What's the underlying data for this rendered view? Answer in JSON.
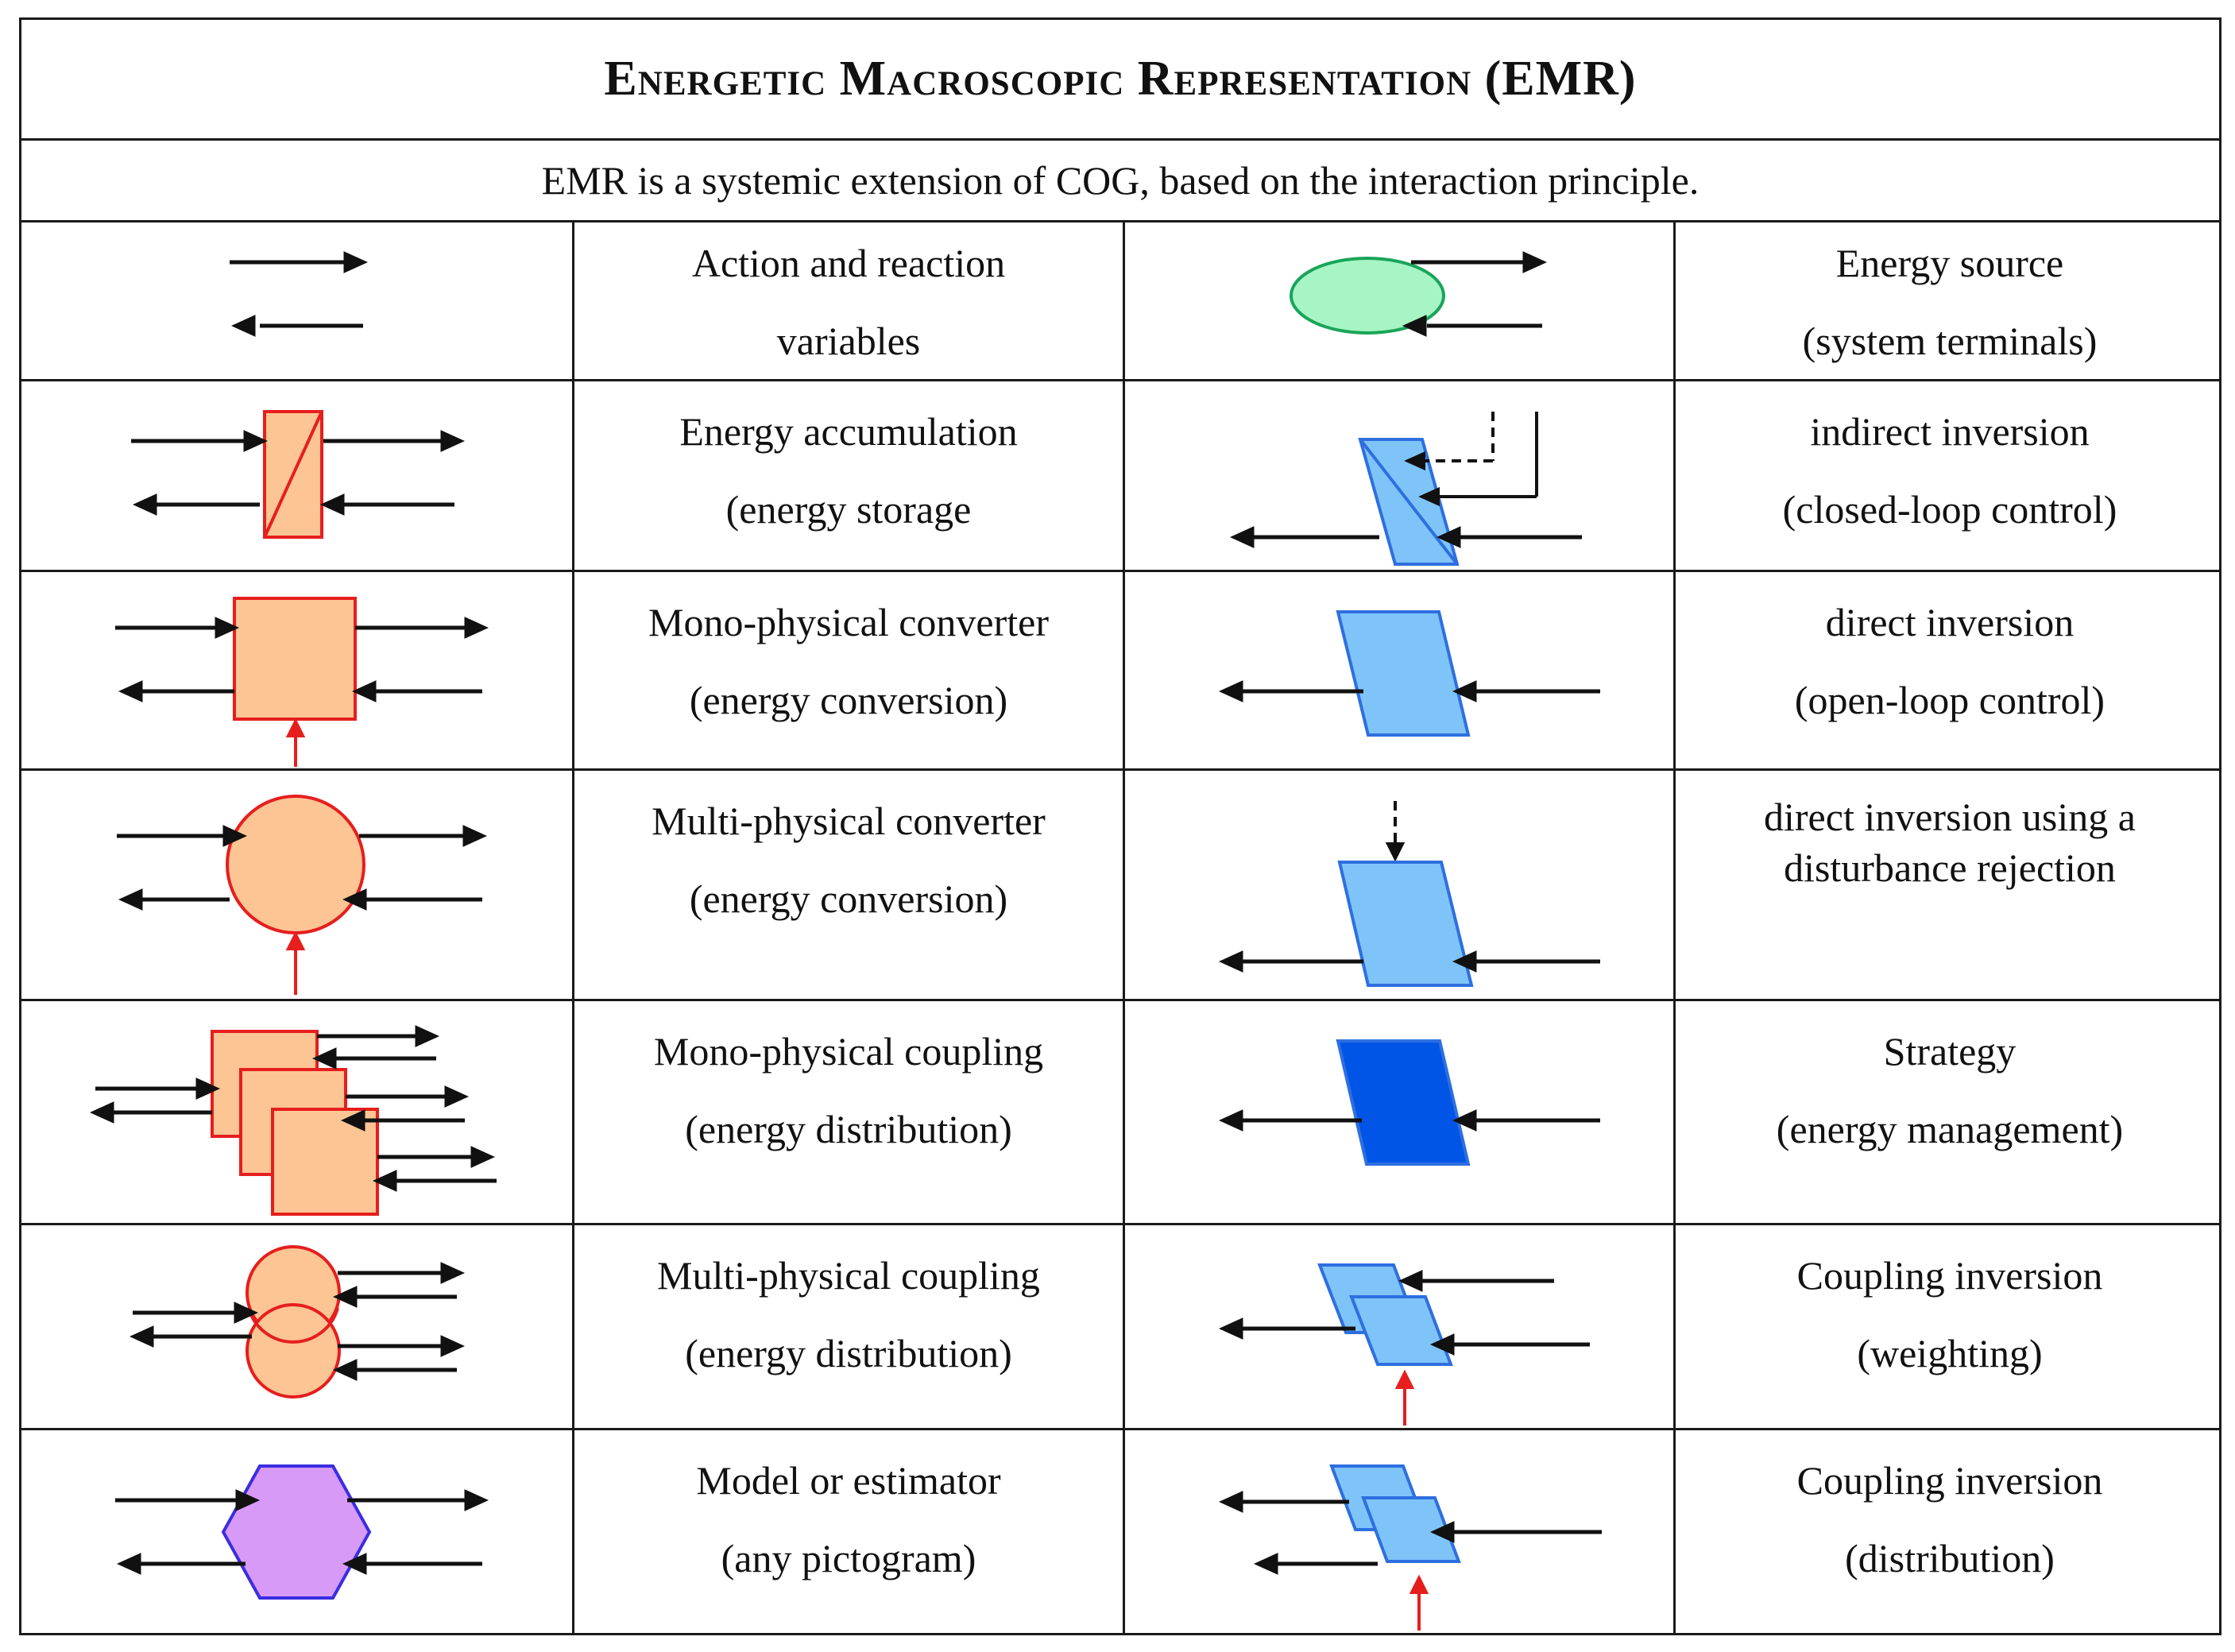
{
  "title": "Energetic Macroscopic Representation (EMR)",
  "subtitle": "EMR is a systemic extension of COG, based on the interaction principle.",
  "colors": {
    "orange_fill": "#fcc593",
    "orange_stroke": "#e61e1e",
    "blue_fill": "#7fc4f8",
    "blue_stroke": "#2e6fe0",
    "blue_dark": "#0055e6",
    "green_fill": "#a7f5c4",
    "green_stroke": "#19a55a",
    "purple_fill": "#d79af7",
    "purple_stroke": "#3a2ee0",
    "red_arrow": "#e61e1e"
  },
  "rows": [
    {
      "left": {
        "symbol": "action-reaction-arrows-icon",
        "line1": "Action and reaction",
        "line2": "variables"
      },
      "right": {
        "symbol": "energy-source-ellipse-icon",
        "line1": "Energy source",
        "line2": "(system terminals)"
      }
    },
    {
      "left": {
        "symbol": "energy-accumulation-rectangle-icon",
        "line1": "Energy accumulation",
        "line2": "(energy storage"
      },
      "right": {
        "symbol": "indirect-inversion-parallelogram-icon",
        "line1": "indirect inversion",
        "line2": "(closed-loop control)"
      }
    },
    {
      "left": {
        "symbol": "mono-physical-converter-square-icon",
        "line1": "Mono-physical converter",
        "line2": "(energy conversion)"
      },
      "right": {
        "symbol": "direct-inversion-parallelogram-icon",
        "line1": "direct inversion",
        "line2": "(open-loop control)"
      }
    },
    {
      "left": {
        "symbol": "multi-physical-converter-circle-icon",
        "line1": "Multi-physical converter",
        "line2": "(energy conversion)"
      },
      "right": {
        "symbol": "disturbance-rejection-parallelogram-icon",
        "line1": "direct inversion using a",
        "line2": "disturbance rejection"
      }
    },
    {
      "left": {
        "symbol": "mono-physical-coupling-squares-icon",
        "line1": "Mono-physical coupling",
        "line2": "(energy distribution)"
      },
      "right": {
        "symbol": "strategy-parallelogram-icon",
        "line1": "Strategy",
        "line2": "(energy management)"
      }
    },
    {
      "left": {
        "symbol": "multi-physical-coupling-circles-icon",
        "line1": "Multi-physical coupling",
        "line2": "(energy distribution)"
      },
      "right": {
        "symbol": "coupling-inversion-weighting-icon",
        "line1": "Coupling inversion",
        "line2": "(weighting)"
      }
    },
    {
      "left": {
        "symbol": "model-estimator-hexagon-icon",
        "line1": "Model or estimator",
        "line2": "(any pictogram)"
      },
      "right": {
        "symbol": "coupling-inversion-distribution-icon",
        "line1": "Coupling inversion",
        "line2": "(distribution)"
      }
    }
  ]
}
